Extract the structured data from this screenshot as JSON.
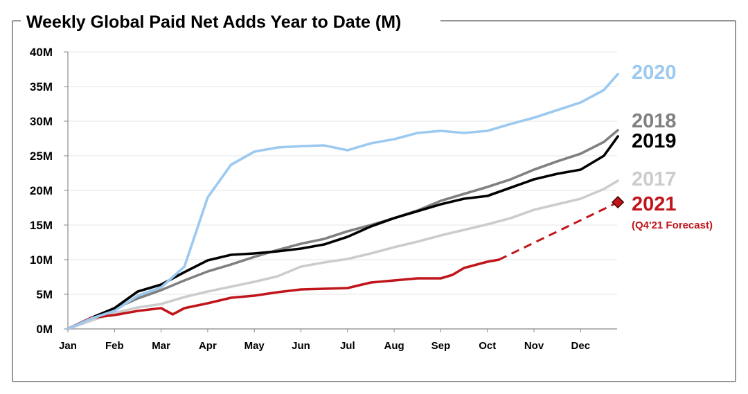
{
  "chart_data": {
    "type": "line",
    "title": "Weekly Global Paid Net Adds Year to Date (M)",
    "xlabel": "",
    "ylabel": "",
    "x_ticks": [
      "Jan",
      "Feb",
      "Mar",
      "Apr",
      "May",
      "Jun",
      "Jul",
      "Aug",
      "Sep",
      "Oct",
      "Nov",
      "Dec"
    ],
    "y_ticks": [
      "0M",
      "5M",
      "10M",
      "15M",
      "20M",
      "25M",
      "30M",
      "35M",
      "40M"
    ],
    "ylim": [
      0,
      40
    ],
    "xlim_months": [
      0,
      11.8
    ],
    "grid": "horizontal",
    "legend": "direct labels at right end of lines",
    "series": [
      {
        "name": "2017",
        "color": "#cccccc",
        "x_month": [
          0,
          0.5,
          1,
          1.5,
          2,
          2.5,
          3,
          3.5,
          4,
          4.5,
          5,
          5.5,
          6,
          6.5,
          7,
          7.5,
          8,
          8.5,
          9,
          9.5,
          10,
          10.5,
          11,
          11.5,
          11.8
        ],
        "values": [
          0,
          1.2,
          2.3,
          3.1,
          3.6,
          4.6,
          5.4,
          6.1,
          6.8,
          7.6,
          9.0,
          9.6,
          10.1,
          10.9,
          11.8,
          12.6,
          13.5,
          14.3,
          15.1,
          16.0,
          17.2,
          18.0,
          18.8,
          20.2,
          21.4
        ]
      },
      {
        "name": "2018",
        "color": "#808080",
        "x_month": [
          0,
          0.5,
          1,
          1.5,
          2,
          2.5,
          3,
          3.5,
          4,
          4.5,
          5,
          5.5,
          6,
          6.5,
          7,
          7.5,
          8,
          8.5,
          9,
          9.5,
          10,
          10.5,
          11,
          11.5,
          11.8
        ],
        "values": [
          0,
          1.6,
          2.9,
          4.4,
          5.6,
          7.0,
          8.3,
          9.3,
          10.4,
          11.4,
          12.3,
          13.0,
          14.1,
          15.0,
          16.0,
          17.1,
          18.5,
          19.5,
          20.5,
          21.6,
          23.0,
          24.2,
          25.3,
          27.0,
          28.7
        ]
      },
      {
        "name": "2019",
        "color": "#000000",
        "x_month": [
          0,
          0.5,
          1,
          1.5,
          2,
          2.5,
          3,
          3.5,
          4,
          4.5,
          5,
          5.5,
          6,
          6.5,
          7,
          7.5,
          8,
          8.5,
          9,
          9.5,
          10,
          10.5,
          11,
          11.5,
          11.8
        ],
        "values": [
          0,
          1.6,
          3.0,
          5.4,
          6.4,
          8.2,
          9.9,
          10.7,
          10.9,
          11.2,
          11.6,
          12.2,
          13.3,
          14.8,
          16.0,
          17.0,
          18.0,
          18.8,
          19.2,
          20.4,
          21.6,
          22.4,
          23.0,
          25.0,
          27.8
        ]
      },
      {
        "name": "2020",
        "color": "#9cc9f0",
        "x_month": [
          0,
          0.5,
          1,
          1.5,
          2,
          2.5,
          3,
          3.5,
          4,
          4.5,
          5,
          5.5,
          6,
          6.5,
          7,
          7.5,
          8,
          8.5,
          9,
          9.5,
          10,
          10.5,
          11,
          11.5,
          11.8
        ],
        "values": [
          0,
          1.5,
          2.6,
          4.8,
          6.0,
          9.0,
          19.0,
          23.7,
          25.6,
          26.2,
          26.4,
          26.5,
          25.8,
          26.8,
          27.4,
          28.3,
          28.6,
          28.3,
          28.6,
          29.6,
          30.5,
          31.6,
          32.7,
          34.5,
          36.8
        ]
      },
      {
        "name": "2021",
        "color": "#c0151b",
        "x_month": [
          0,
          0.5,
          1,
          1.5,
          2,
          2.25,
          2.5,
          3,
          3.5,
          4,
          4.5,
          5,
          5.5,
          6,
          6.5,
          7,
          7.5,
          8,
          8.25,
          8.5,
          9,
          9.25
        ],
        "values": [
          0,
          1.6,
          2.0,
          2.6,
          3.0,
          2.1,
          3.0,
          3.7,
          4.5,
          4.8,
          5.3,
          5.7,
          5.8,
          5.9,
          6.7,
          7.0,
          7.3,
          7.3,
          7.8,
          8.8,
          9.7,
          10.0
        ]
      }
    ],
    "forecast": {
      "label": "2021",
      "note": "(Q4'21 Forecast)",
      "color": "#c0151b",
      "style": "dashed",
      "from": {
        "x_month": 9.25,
        "value": 10.0
      },
      "to": {
        "x_month": 11.8,
        "value": 18.3
      }
    }
  }
}
